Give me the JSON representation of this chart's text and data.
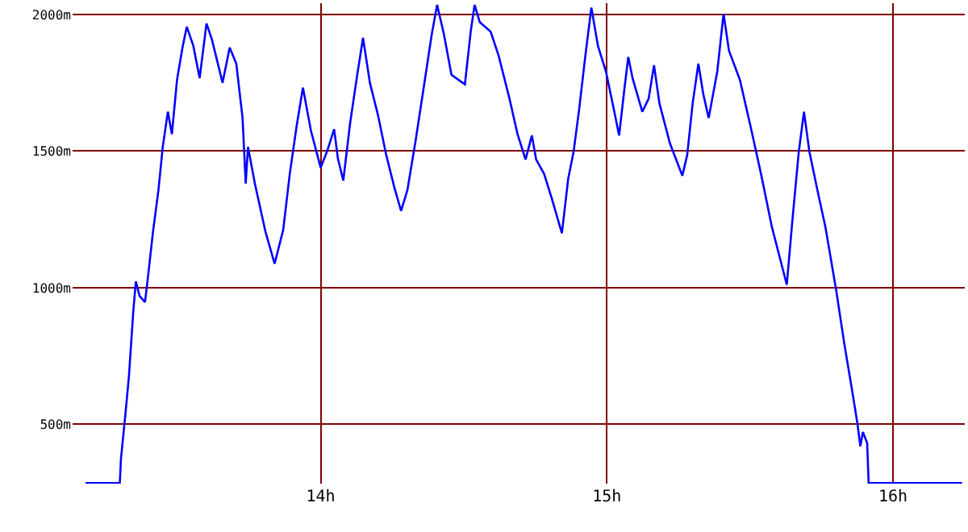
{
  "chart_data": {
    "type": "line",
    "x": [
      13.178,
      13.298,
      13.302,
      13.317,
      13.33,
      13.345,
      13.354,
      13.367,
      13.386,
      13.396,
      13.414,
      13.433,
      13.448,
      13.466,
      13.48,
      13.498,
      13.517,
      13.532,
      13.555,
      13.577,
      13.601,
      13.62,
      13.657,
      13.682,
      13.705,
      13.727,
      13.738,
      13.746,
      13.77,
      13.807,
      13.839,
      13.869,
      13.892,
      13.916,
      13.938,
      13.966,
      14.0,
      14.022,
      14.047,
      14.06,
      14.079,
      14.103,
      14.126,
      14.148,
      14.172,
      14.2,
      14.229,
      14.257,
      14.281,
      14.303,
      14.331,
      14.36,
      14.388,
      14.407,
      14.431,
      14.457,
      14.481,
      14.504,
      14.525,
      14.538,
      14.556,
      14.594,
      14.622,
      14.66,
      14.688,
      14.716,
      14.738,
      14.753,
      14.781,
      14.809,
      14.843,
      14.865,
      14.884,
      14.903,
      14.925,
      14.946,
      14.969,
      14.997,
      15.025,
      15.043,
      15.062,
      15.075,
      15.09,
      15.124,
      15.146,
      15.165,
      15.184,
      15.221,
      15.264,
      15.281,
      15.3,
      15.32,
      15.337,
      15.356,
      15.386,
      15.408,
      15.427,
      15.465,
      15.502,
      15.539,
      15.577,
      15.629,
      15.648,
      15.671,
      15.689,
      15.708,
      15.736,
      15.764,
      15.783,
      15.802,
      15.83,
      15.858,
      15.876,
      15.886,
      15.895,
      15.91,
      15.915,
      16.242
    ],
    "series": [
      {
        "color": "#0000ff",
        "values": [
          285,
          285,
          373,
          531,
          677,
          912,
          1023,
          970,
          947,
          1035,
          1205,
          1357,
          1515,
          1644,
          1562,
          1761,
          1879,
          1955,
          1885,
          1767,
          1967,
          1908,
          1750,
          1879,
          1820,
          1621,
          1381,
          1515,
          1381,
          1205,
          1088,
          1211,
          1416,
          1592,
          1732,
          1574,
          1439,
          1498,
          1580,
          1474,
          1392,
          1603,
          1767,
          1914,
          1750,
          1633,
          1486,
          1369,
          1281,
          1357,
          1533,
          1732,
          1926,
          2035,
          1926,
          1779,
          1761,
          1744,
          1943,
          2035,
          1972,
          1937,
          1849,
          1691,
          1562,
          1469,
          1557,
          1469,
          1416,
          1322,
          1199,
          1398,
          1498,
          1650,
          1849,
          2025,
          1885,
          1791,
          1650,
          1557,
          1732,
          1844,
          1767,
          1644,
          1691,
          1814,
          1674,
          1527,
          1410,
          1486,
          1674,
          1820,
          1709,
          1621,
          1791,
          2002,
          1867,
          1761,
          1592,
          1416,
          1222,
          1011,
          1240,
          1498,
          1644,
          1498,
          1357,
          1222,
          1105,
          988,
          795,
          619,
          502,
          420,
          472,
          431,
          285,
          285
        ]
      }
    ],
    "xlim": [
      13.133,
      16.251
    ],
    "ylim": [
      283,
      2041
    ],
    "xticks": [
      {
        "value": 14,
        "label": "14h"
      },
      {
        "value": 15,
        "label": "15h"
      },
      {
        "value": 16,
        "label": "16h"
      }
    ],
    "yticks": [
      {
        "value": 500,
        "label": "500m"
      },
      {
        "value": 1000,
        "label": "1000m"
      },
      {
        "value": 1500,
        "label": "1500m"
      },
      {
        "value": 2000,
        "label": "2000m"
      }
    ],
    "grid": true,
    "legend": false,
    "marker": "none",
    "line_style": "solid"
  }
}
